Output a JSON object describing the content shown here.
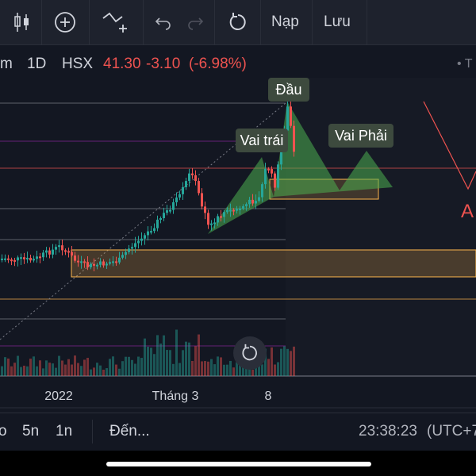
{
  "toolbar": {
    "reset_icon": "undo-circular-arrow-icon",
    "load_label": "Nạp",
    "save_label": "Lưu"
  },
  "symbol": {
    "name_fragment": "m",
    "interval": "1D",
    "exchange": "HSX",
    "price": "41.30",
    "change": "-3.10",
    "change_pct": "(-6.98%)",
    "right_fragment": "• T"
  },
  "chart": {
    "labels": {
      "head": "Đầu",
      "left_shoulder": "Vai trái",
      "right_shoulder": "Vai Phải",
      "right_edge_letter": "A"
    },
    "x_ticks": [
      "2022",
      "Tháng 3",
      "8"
    ],
    "colors": {
      "up": "#26a69a",
      "down": "#ef5350",
      "pattern_fill": "#4caf50",
      "zone": "#ffb74d"
    }
  },
  "bottombar": {
    "range_fragment": "o",
    "range_5y": "5n",
    "range_1y": "1n",
    "goto": "Đến...",
    "time": "23:38:23",
    "timezone": "(UTC+7"
  }
}
